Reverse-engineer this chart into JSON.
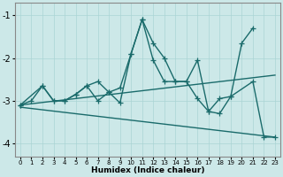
{
  "xlabel": "Humidex (Indice chaleur)",
  "xlim": [
    -0.5,
    23.5
  ],
  "ylim": [
    -4.3,
    -0.7
  ],
  "yticks": [
    -4,
    -3,
    -2,
    -1
  ],
  "xticks": [
    0,
    1,
    2,
    3,
    4,
    5,
    6,
    7,
    8,
    9,
    10,
    11,
    12,
    13,
    14,
    15,
    16,
    17,
    18,
    19,
    20,
    21,
    22,
    23
  ],
  "bg_color": "#cce8e8",
  "line_color": "#1a6b6b",
  "grid_color": "#aad4d4",
  "series_main": {
    "x": [
      0,
      1,
      2,
      3,
      4,
      5,
      6,
      7,
      8,
      9,
      10,
      11,
      12,
      13,
      14,
      15,
      16,
      17,
      18,
      19,
      20,
      21
    ],
    "y": [
      -3.1,
      -3.0,
      -2.65,
      -3.0,
      -3.0,
      -2.85,
      -2.65,
      -2.55,
      -2.8,
      -3.05,
      -1.9,
      -1.1,
      -1.65,
      -2.0,
      -2.55,
      -2.55,
      -2.05,
      -3.25,
      -2.95,
      -2.9,
      -1.65,
      -1.3
    ]
  },
  "series_lower": {
    "x": [
      0,
      2,
      3,
      4,
      5,
      6,
      7,
      8,
      9,
      10,
      11,
      12,
      13,
      14,
      15,
      16,
      17,
      18,
      19,
      21,
      22,
      23
    ],
    "y": [
      -3.1,
      -2.65,
      -3.0,
      -3.0,
      -2.85,
      -2.65,
      -3.0,
      -2.8,
      -2.7,
      -1.9,
      -1.1,
      -2.05,
      -2.55,
      -2.55,
      -2.55,
      -2.95,
      -3.25,
      -3.3,
      -2.9,
      -2.55,
      -3.85,
      -3.85
    ]
  },
  "trend_upper": {
    "x": [
      0,
      23
    ],
    "y": [
      -3.1,
      -2.4
    ]
  },
  "trend_lower": {
    "x": [
      0,
      23
    ],
    "y": [
      -3.15,
      -3.85
    ]
  },
  "marker": "+",
  "markersize": 4,
  "linewidth": 1.0
}
